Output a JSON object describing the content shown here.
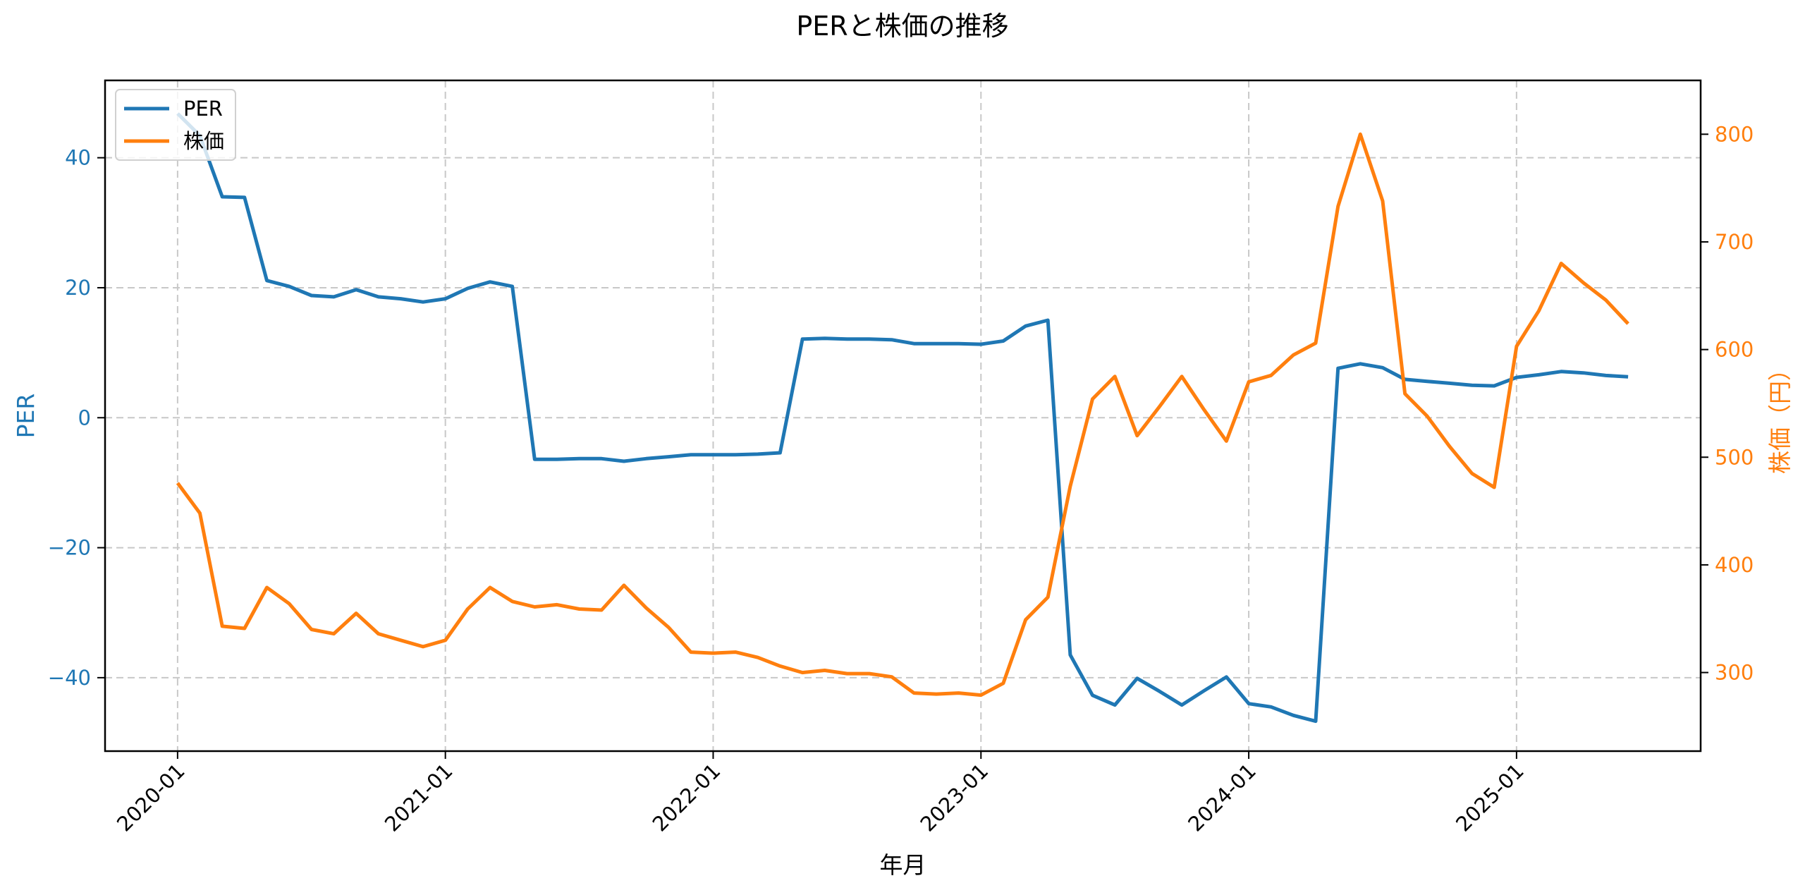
{
  "chart_data": {
    "type": "line",
    "title": "PERと株価の推移",
    "xlabel": "年月",
    "ylabel": "PER",
    "ylabel_right": "株価（円）",
    "x": [
      "2020-01",
      "2020-02",
      "2020-03",
      "2020-04",
      "2020-05",
      "2020-06",
      "2020-07",
      "2020-08",
      "2020-09",
      "2020-10",
      "2020-11",
      "2020-12",
      "2021-01",
      "2021-02",
      "2021-03",
      "2021-04",
      "2021-05",
      "2021-06",
      "2021-07",
      "2021-08",
      "2021-09",
      "2021-10",
      "2021-11",
      "2021-12",
      "2022-01",
      "2022-02",
      "2022-03",
      "2022-04",
      "2022-05",
      "2022-06",
      "2022-07",
      "2022-08",
      "2022-09",
      "2022-10",
      "2022-11",
      "2022-12",
      "2023-01",
      "2023-02",
      "2023-03",
      "2023-04",
      "2023-05",
      "2023-06",
      "2023-07",
      "2023-08",
      "2023-09",
      "2023-10",
      "2023-11",
      "2023-12",
      "2024-01",
      "2024-02",
      "2024-03",
      "2024-04",
      "2024-05",
      "2024-06",
      "2024-07",
      "2024-08",
      "2024-09",
      "2024-10",
      "2024-11",
      "2024-12",
      "2025-01",
      "2025-02",
      "2025-03",
      "2025-04",
      "2025-05",
      "2025-06"
    ],
    "x_tick_labels": [
      "2020-01",
      "2021-01",
      "2022-01",
      "2023-01",
      "2024-01",
      "2025-01"
    ],
    "x_tick_indices": [
      0,
      12,
      24,
      36,
      48,
      60
    ],
    "xlim": [
      -3.25,
      68.25
    ],
    "series": [
      {
        "name": "PER",
        "axis": "left",
        "color": "#1f77b4",
        "values": [
          46.8,
          43.4,
          34.0,
          33.9,
          21.1,
          20.2,
          18.8,
          18.6,
          19.7,
          18.6,
          18.3,
          17.8,
          18.3,
          19.9,
          20.9,
          20.2,
          -6.4,
          -6.4,
          -6.3,
          -6.3,
          -6.7,
          -6.3,
          -6.0,
          -5.7,
          -5.7,
          -5.7,
          -5.6,
          -5.4,
          12.1,
          12.2,
          12.1,
          12.1,
          12.0,
          11.4,
          11.4,
          11.4,
          11.3,
          11.8,
          14.1,
          15.0,
          -36.5,
          -42.7,
          -44.2,
          -40.1,
          -42.1,
          -44.2,
          -42.0,
          -39.9,
          -44.0,
          -44.5,
          -45.8,
          -46.7,
          7.6,
          8.3,
          7.7,
          5.9,
          5.6,
          5.3,
          5.0,
          4.9,
          6.2,
          6.6,
          7.1,
          6.9,
          6.5,
          6.3
        ]
      },
      {
        "name": "株価",
        "axis": "right",
        "color": "#ff7f0e",
        "values": [
          476,
          448,
          343,
          341,
          379,
          364,
          340,
          336,
          355,
          336,
          330,
          324,
          330,
          359,
          379,
          366,
          361,
          363,
          359,
          358,
          381,
          360,
          342,
          319,
          318,
          319,
          314,
          306,
          300,
          302,
          299,
          299,
          296,
          281,
          280,
          281,
          279,
          290,
          349,
          370,
          473,
          554,
          575,
          520,
          547,
          575,
          544,
          515,
          570,
          576,
          595,
          606,
          733,
          800,
          738,
          559,
          538,
          510,
          485,
          472,
          603,
          636,
          680,
          662,
          646,
          624
        ]
      }
    ],
    "ylim": [
      -51.3,
      51.9
    ],
    "ylim_right": [
      227,
      850
    ],
    "y_ticks": [
      40,
      20,
      0,
      -20,
      -40
    ],
    "y_tick_labels": [
      "40",
      "20",
      "0",
      "−20",
      "−40"
    ],
    "y_ticks_right": [
      800,
      700,
      600,
      500,
      400,
      300
    ],
    "y_tick_labels_right": [
      "800",
      "700",
      "600",
      "500",
      "400",
      "300"
    ],
    "grid": true,
    "legend": {
      "position": "upper left",
      "entries": [
        "PER",
        "株価"
      ]
    }
  },
  "colors": {
    "per": "#1f77b4",
    "price": "#ff7f0e",
    "grid": "#c8c8c8",
    "axis": "#000000"
  }
}
